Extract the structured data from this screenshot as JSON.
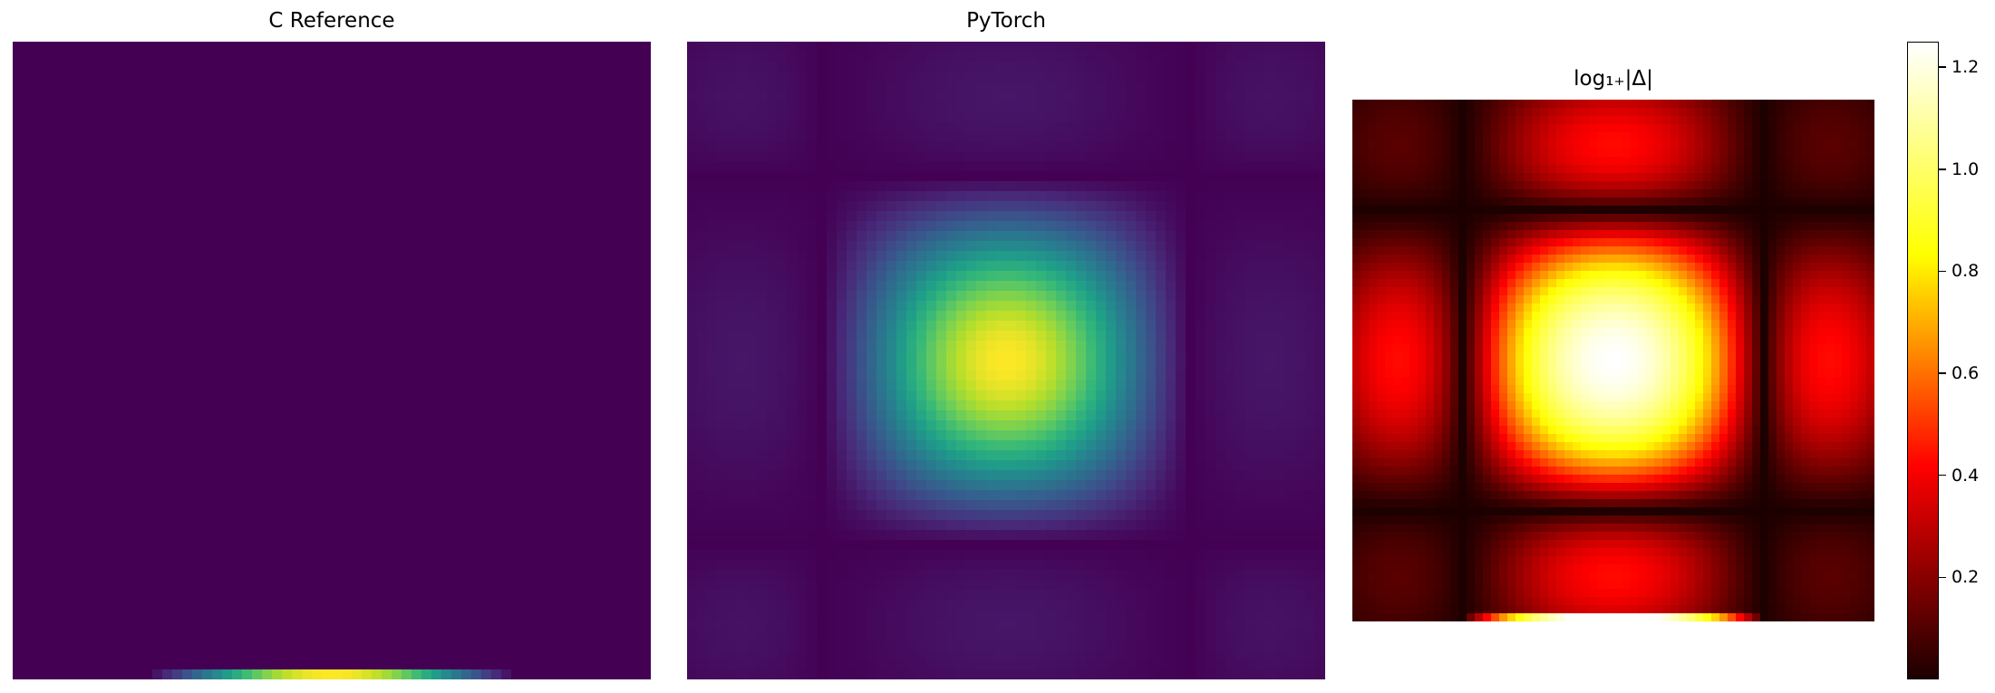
{
  "chart_data": [
    {
      "type": "heatmap",
      "title": "C Reference",
      "colormap": "viridis",
      "colorbar": false,
      "grid_size": 64,
      "description_of_values": "all cells ≈ 0 except last row which forms a 1-D bump peaking at column center",
      "peak_value_last_row": 1.0
    },
    {
      "type": "heatmap",
      "title": "PyTorch",
      "colormap": "viridis",
      "colorbar": false,
      "grid_size": 64,
      "description_of_values": "2-D sinc-like pattern: central peak with weak side lobes near the edges",
      "peak_value": 1.0
    },
    {
      "type": "heatmap",
      "title": "log₁₊|Δ|",
      "colormap": "hot",
      "colorbar": true,
      "grid_size": 64,
      "vmin": 0.0,
      "vmax": 1.25,
      "colorbar_ticks": [
        0.2,
        0.4,
        0.6,
        0.8,
        1.0,
        1.2
      ],
      "colorbar_tick_labels": [
        "0.2",
        "0.4",
        "0.6",
        "0.8",
        "1.0",
        "1.2"
      ],
      "peak_value": 1.25
    }
  ]
}
